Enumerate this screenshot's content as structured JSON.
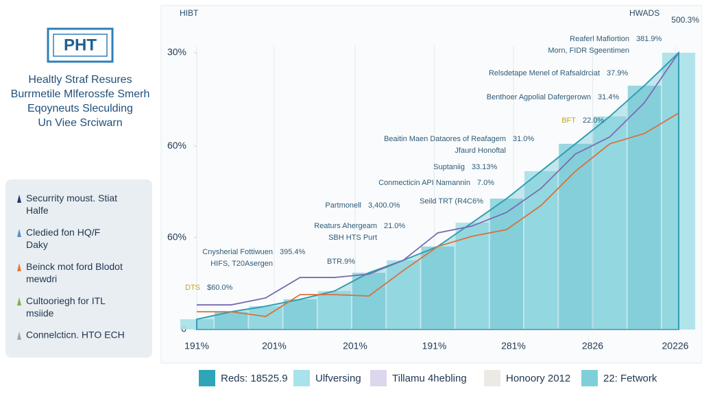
{
  "header": {
    "logo": "PHT",
    "title_lines": [
      "Healtly Straf Resures",
      "Burrmetile Mlferossfe Smerh",
      "Eqoyneuts Sleculding",
      "Un Viee Srciwarn"
    ]
  },
  "side_legend": [
    {
      "label": "Securrity moust. Stiat Halfe",
      "color": "#1f3a6e"
    },
    {
      "label": "Cledied fon HQ/F Daky",
      "color": "#5b8fc9"
    },
    {
      "label": "Beinck mot ford Blodot mewdri",
      "color": "#e07a3c"
    },
    {
      "label": "Cultooriegh for ITL msiide",
      "color": "#7cb342"
    },
    {
      "label": "Connelcticn. HTO ECH",
      "color": "#9aa5b1"
    }
  ],
  "chart_data": {
    "type": "area",
    "corner_labels": [
      "HIBT",
      "HWADS",
      "500.3%"
    ],
    "x": [
      0,
      1,
      2,
      3,
      4,
      5,
      6,
      7,
      8,
      9,
      10,
      11,
      12,
      13,
      14
    ],
    "xlim": [
      0,
      14
    ],
    "xticks": [
      {
        "value": 0,
        "label": "191%"
      },
      {
        "value": 2.25,
        "label": "201%"
      },
      {
        "value": 4.6,
        "label": "201%"
      },
      {
        "value": 6.9,
        "label": "191%"
      },
      {
        "value": 9.2,
        "label": "281%"
      },
      {
        "value": 11.5,
        "label": "2826"
      },
      {
        "value": 13.9,
        "label": "20226"
      }
    ],
    "ylim": [
      0,
      100
    ],
    "yticks": [
      0,
      {
        "value": 33.2,
        "label": "60%"
      },
      {
        "value": 66.3,
        "label": "60%"
      },
      {
        "value": 100,
        "label": "30%"
      }
    ],
    "grid": true,
    "series": [
      {
        "color": "#5bbfcf",
        "values": [
          3.7,
          6.4,
          8.4,
          10.9,
          13.9,
          20.5,
          25,
          30,
          38.6,
          47.3,
          57.2,
          67.1,
          77,
          88.1,
          100
        ]
      },
      {
        "color": "#7a6bb0",
        "values": [
          8.9,
          8.9,
          11.4,
          18.8,
          18.8,
          20,
          25,
          34.9,
          37.4,
          42.3,
          51,
          63.4,
          69.6,
          81.9,
          100
        ]
      },
      {
        "color": "#d9703a",
        "values": [
          6.4,
          6.4,
          4.7,
          12.6,
          12.6,
          12.1,
          21.3,
          30,
          33.7,
          36.1,
          44.8,
          57.2,
          67.1,
          70.8,
          78.2
        ]
      }
    ],
    "annotations": [
      {
        "lines": [
          "Reaferl Mafiortion",
          "Morn, FIDR Sgeentimen"
        ],
        "value": "381.9%"
      },
      {
        "lines": [
          "Relsdetape Menel of Rafsaldrciat"
        ],
        "value": "37.9%"
      },
      {
        "lines": [
          "Benthoer Agpolial Dafergerown"
        ],
        "value": "31.4%"
      },
      {
        "lines": [
          "BFT"
        ],
        "value": "22.0%"
      },
      {
        "lines": [
          "Beaitin Maen Dataores of Reafagem",
          "Jfaurd Honoftal"
        ],
        "value": "31.0%"
      },
      {
        "lines": [
          "Suptaniig"
        ],
        "value": "33.13%"
      },
      {
        "lines": [
          "Conmecticin API Namannin"
        ],
        "value": "7.0%"
      },
      {
        "lines": [
          "Seild TRT (R4C6%"
        ]
      },
      {
        "lines": [
          "Partmonell"
        ],
        "value": "3,400.0%"
      },
      {
        "lines": [
          "Reaturs Ahergeam",
          "SBH HTS Purt"
        ],
        "value": "21.0%"
      },
      {
        "lines": [
          "Cnysherial Fottiwuen",
          "HIFS, T20Asergen"
        ],
        "value": "395.4%"
      },
      {
        "lines": [
          "BTR.9%"
        ]
      },
      {
        "lines": [
          "DTS"
        ],
        "value": "$60.0%"
      }
    ]
  },
  "bottom_legend": [
    {
      "label": "Reds: 18525.9",
      "color": "#2fa6b8"
    },
    {
      "label": "Ulfversing",
      "color": "#a8e2ea"
    },
    {
      "label": "Tillamu 4hebling",
      "color": "#ddd6ee"
    },
    {
      "label": "Honoory 2012",
      "color": "#eceae4"
    },
    {
      "label": "22: Fetwork",
      "color": "#7fcfd9"
    }
  ]
}
